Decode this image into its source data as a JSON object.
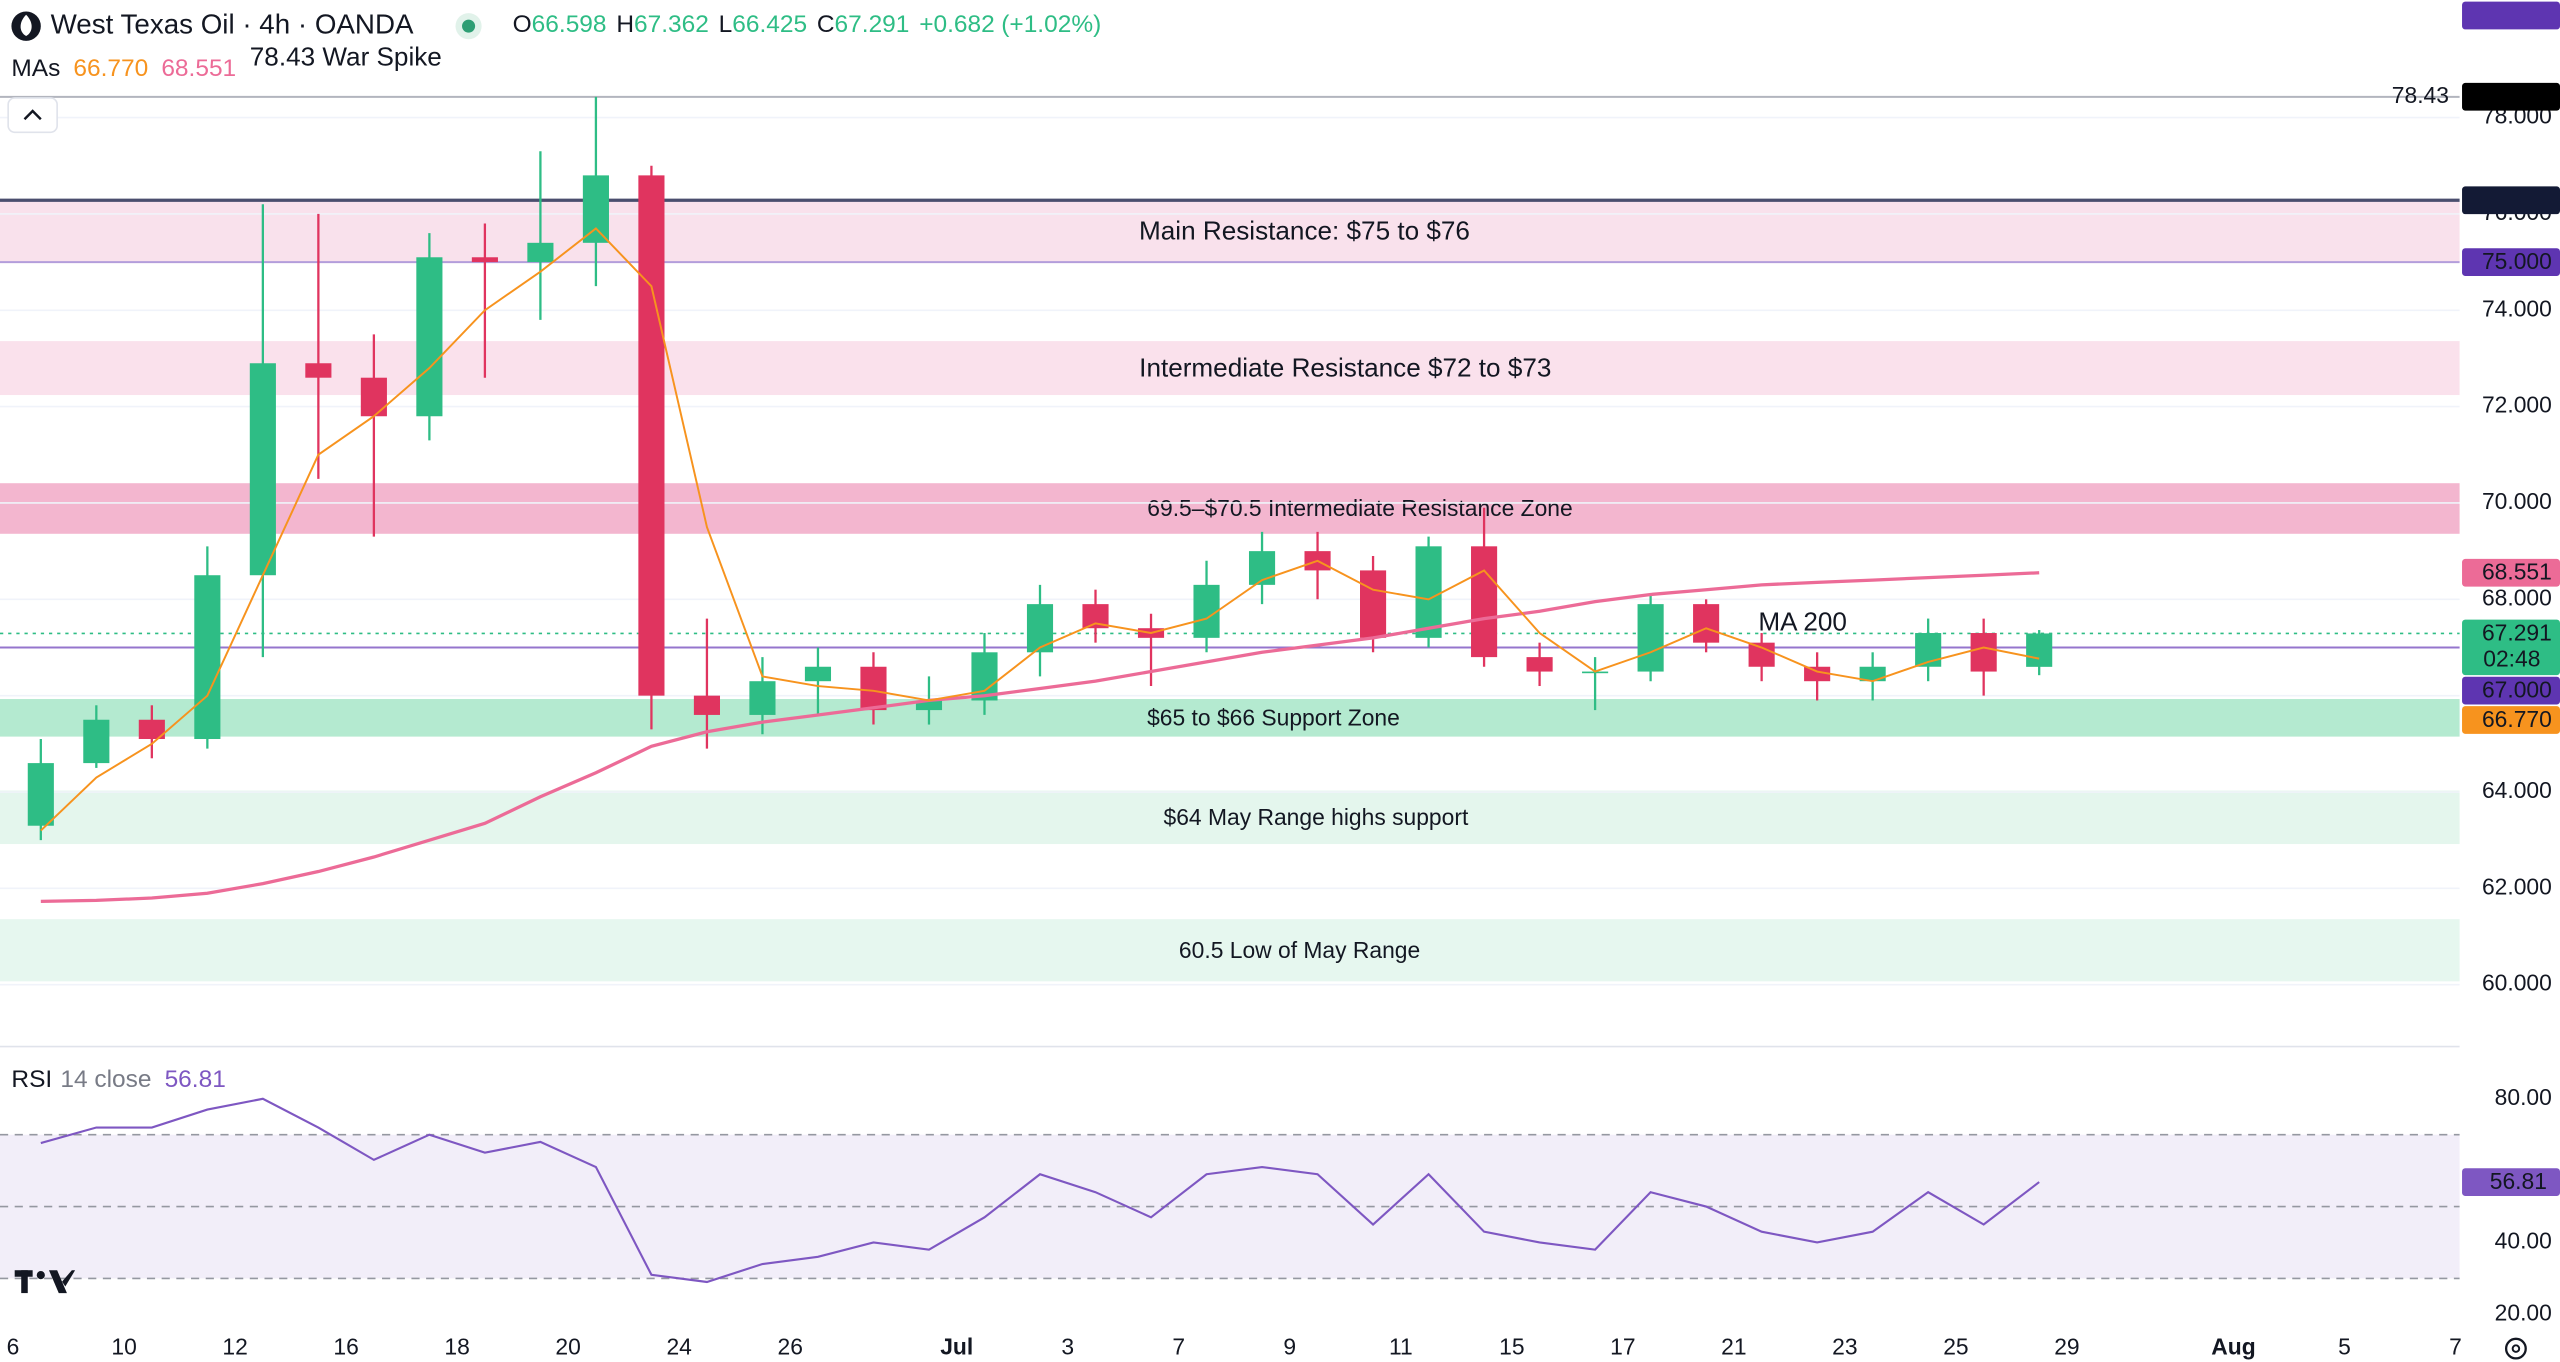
{
  "header": {
    "title": "West Texas Oil · 4h · OANDA",
    "ohlc_letters": [
      "O",
      "H",
      "L",
      "C"
    ],
    "change": {
      "value": 0.682,
      "label": "+0.682"
    },
    "change_pct": {
      "value": 1.02,
      "label": "(+1.02%)"
    },
    "mas_label": "MAs",
    "mas": [
      {
        "value": 66.77,
        "label": "66.770"
      },
      68.551
    ],
    "annotation": "78.43 War Spike",
    "countdown": "02:48"
  },
  "chart_data": [
    {
      "type": "candlestick",
      "categories": [
        "6",
        null,
        "10",
        null,
        "12",
        null,
        "16",
        null,
        "18",
        null,
        "20",
        null,
        "24",
        null,
        "26",
        null,
        null,
        "Jul",
        null,
        "3",
        null,
        "7",
        null,
        "9",
        null,
        "11",
        null,
        "15",
        null,
        "17",
        null,
        "21",
        null,
        "23",
        null,
        "25",
        null,
        "29",
        null,
        null,
        "Aug",
        null,
        "5",
        null,
        "7"
      ],
      "open": [
        63.3,
        64.6,
        65.5,
        65.1,
        68.5,
        72.9,
        72.6,
        71.8,
        75.1,
        75.0,
        75.4,
        76.8,
        66.0,
        65.6,
        66.3,
        66.6,
        65.7,
        65.9,
        66.9,
        67.9,
        67.4,
        67.2,
        68.3,
        69.0,
        68.6,
        67.2,
        69.1,
        66.8,
        66.5,
        66.5,
        67.9,
        67.1,
        66.6,
        66.3,
        66.6,
        67.3,
        66.598,
        null,
        null,
        null,
        null,
        null,
        null,
        null,
        null
      ],
      "high": [
        65.1,
        65.8,
        65.8,
        69.1,
        76.2,
        76.0,
        73.5,
        75.6,
        75.8,
        77.3,
        78.43,
        77.0,
        67.6,
        66.8,
        67.0,
        66.9,
        66.4,
        67.3,
        68.3,
        68.2,
        67.7,
        68.8,
        69.4,
        69.4,
        68.9,
        69.3,
        69.9,
        67.1,
        66.8,
        68.1,
        68.0,
        67.3,
        66.9,
        66.9,
        67.6,
        67.6,
        67.362,
        null,
        null,
        null,
        null,
        null,
        null,
        null,
        null
      ],
      "low": [
        63.0,
        64.5,
        64.7,
        64.9,
        66.8,
        70.5,
        69.3,
        71.3,
        72.6,
        73.8,
        74.5,
        65.3,
        64.9,
        65.2,
        65.6,
        65.4,
        65.4,
        65.6,
        66.4,
        67.1,
        66.2,
        66.9,
        67.9,
        68.0,
        66.9,
        67.0,
        66.6,
        66.2,
        65.7,
        66.3,
        66.9,
        66.3,
        65.9,
        65.9,
        66.3,
        66.0,
        66.425,
        null,
        null,
        null,
        null,
        null,
        null,
        null,
        null
      ],
      "close": [
        64.6,
        65.5,
        65.1,
        68.5,
        72.9,
        72.6,
        71.8,
        75.1,
        75.0,
        75.4,
        76.8,
        66.0,
        65.6,
        66.3,
        66.6,
        65.7,
        65.9,
        66.9,
        67.9,
        67.4,
        67.2,
        68.3,
        69.0,
        68.6,
        67.2,
        69.1,
        66.8,
        66.5,
        66.5,
        67.9,
        67.1,
        66.6,
        66.3,
        66.6,
        67.3,
        66.5,
        67.291,
        null,
        null,
        null,
        null,
        null,
        null,
        null,
        null
      ],
      "up_color": "#2ebd85",
      "down_color": "#e0345f",
      "series": [
        {
          "name": "MA 200",
          "color": "#ec6b97",
          "values": [
            61.73,
            61.75,
            61.8,
            61.9,
            62.1,
            62.35,
            62.65,
            63.0,
            63.35,
            63.9,
            64.4,
            64.95,
            65.25,
            65.45,
            65.6,
            65.75,
            65.9,
            66.0,
            66.15,
            66.3,
            66.5,
            66.7,
            66.9,
            67.05,
            67.2,
            67.4,
            67.6,
            67.75,
            67.95,
            68.1,
            68.2,
            68.3,
            68.35,
            68.4,
            68.45,
            68.5,
            68.551,
            null,
            null,
            null,
            null,
            null,
            null,
            null,
            null
          ]
        },
        {
          "color": "#f7931e",
          "values": [
            63.2,
            64.3,
            65.0,
            66.0,
            68.5,
            71.0,
            71.8,
            72.8,
            74.0,
            74.8,
            75.7,
            74.5,
            69.5,
            66.4,
            66.2,
            66.1,
            65.9,
            66.1,
            67.0,
            67.5,
            67.3,
            67.6,
            68.4,
            68.8,
            68.2,
            68.0,
            68.6,
            67.3,
            66.5,
            66.9,
            67.4,
            67.0,
            66.5,
            66.3,
            66.7,
            67.0,
            66.77,
            null,
            null,
            null,
            null,
            null,
            null,
            null,
            null
          ]
        }
      ],
      "ylim": [
        58.75,
        80.44
      ],
      "yticks": [
        {
          "value": 60,
          "label": "60.000"
        },
        {
          "value": 62,
          "label": "62.000"
        },
        {
          "value": 64,
          "label": "64.000"
        },
        {
          "value": 66,
          "label": "66.000"
        },
        {
          "value": 68,
          "label": "68.000"
        },
        {
          "value": 70,
          "label": "70.000"
        },
        {
          "value": 72,
          "label": "72.000"
        },
        {
          "value": 74,
          "label": "74.000"
        },
        {
          "value": 76,
          "label": "76.000"
        },
        {
          "value": 78,
          "label": "78.000"
        }
      ],
      "grid": true,
      "zones": [
        {
          "label": "Main Resistance: $75 to $76",
          "from": 75,
          "to": 76.283,
          "color": "#f9e1ec"
        },
        {
          "label": "Intermediate Resistance $72 to $73",
          "from": 72.24,
          "to": 73.36,
          "color": "#fae1ec"
        },
        {
          "label": "69.5–$70.5 Intermediate Resistance Zone",
          "from": 69.36,
          "to": 70.41,
          "color": "#f3b6cf"
        },
        {
          "label": "$65 to $66 Support Zone",
          "from": 65.15,
          "to": 65.93,
          "color": "#b4ead0"
        },
        {
          "label": "$64 May Range highs support",
          "from": 62.92,
          "to": 64.03,
          "color": "#e4f6ed"
        },
        {
          "label": "60.5 Low of May Range",
          "from": 60.07,
          "to": 61.36,
          "color": "#e6f7ef"
        }
      ],
      "hlines": [
        {
          "value": 78.43,
          "color": "#b2b5be",
          "label": "78.43"
        },
        {
          "value": 76.283,
          "color": "#4a4e6e"
        },
        {
          "value": 75,
          "color": "#b39ddb"
        },
        {
          "value": 67,
          "color": "#9575cd"
        }
      ],
      "price_tags": [
        {
          "value": 80.756,
          "color": "#5e35b1"
        },
        {
          "value": 78.432,
          "color": "#000000"
        },
        {
          "value": 76.283,
          "color": "#131a35"
        },
        {
          "value": 75,
          "label": "75.000",
          "color": "#5e35b1"
        },
        {
          "value": 67,
          "label": "67.000",
          "color": "#5e35b1"
        }
      ]
    },
    {
      "type": "line",
      "title": "RSI",
      "subtitle": "14 close",
      "color": "#7e57c2",
      "values": [
        67.7,
        72,
        72,
        77,
        80,
        72,
        63,
        70,
        65,
        68,
        61,
        31,
        29,
        34,
        36,
        40,
        38,
        47,
        59,
        54,
        47,
        59,
        61,
        59,
        45,
        59,
        43,
        40,
        38,
        54,
        50,
        43,
        40,
        43,
        54,
        45,
        56.81,
        null,
        null,
        null,
        null,
        null,
        null,
        null,
        null
      ],
      "ylim": [
        16.82,
        93.64
      ],
      "yticks": [
        {
          "value": 20,
          "label": "20.00"
        },
        {
          "value": 40,
          "label": "40.00"
        },
        {
          "value": 80,
          "label": "80.00"
        }
      ],
      "bands": [
        70,
        50,
        30
      ]
    }
  ]
}
